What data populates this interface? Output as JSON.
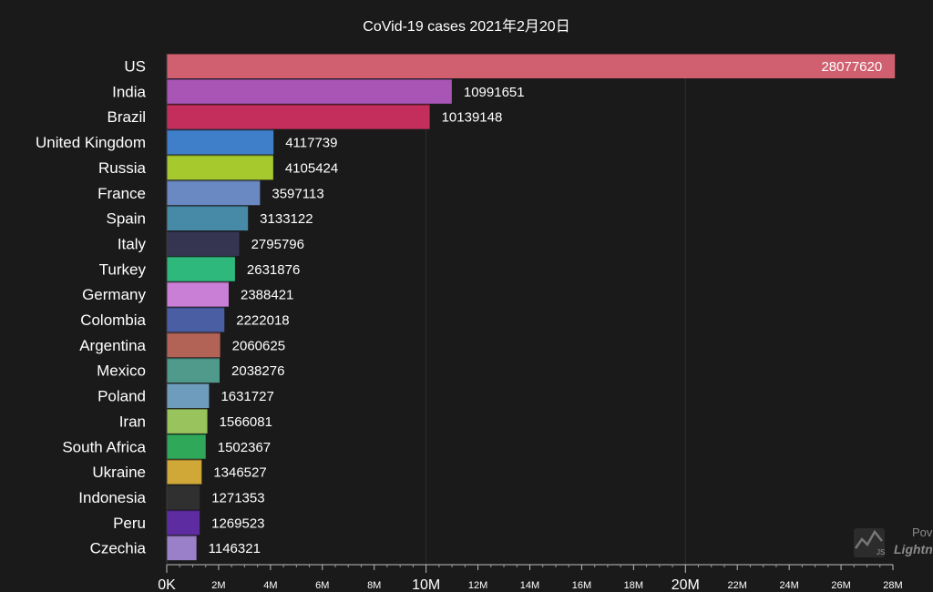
{
  "chart_data": {
    "type": "bar",
    "orientation": "horizontal",
    "title": "CoVid-19 cases 2021年2月20日",
    "categories": [
      "US",
      "India",
      "Brazil",
      "United Kingdom",
      "Russia",
      "France",
      "Spain",
      "Italy",
      "Turkey",
      "Germany",
      "Colombia",
      "Argentina",
      "Mexico",
      "Poland",
      "Iran",
      "South Africa",
      "Ukraine",
      "Indonesia",
      "Peru",
      "Czechia"
    ],
    "values": [
      28077620,
      10991651,
      10139148,
      4117739,
      4105424,
      3597113,
      3133122,
      2795796,
      2631876,
      2388421,
      2222018,
      2060625,
      2038276,
      1631727,
      1566081,
      1502367,
      1346527,
      1271353,
      1269523,
      1146321
    ],
    "value_labels": [
      "28077620",
      "10991651",
      "10139148",
      "4117739",
      "4105424",
      "3597113",
      "3133122",
      "2795796",
      "2631876",
      "2388421",
      "2222018",
      "2060625",
      "2038276",
      "1631727",
      "1566081",
      "1502367",
      "1346527",
      "1271353",
      "1269523",
      "1146321"
    ],
    "colors": [
      "#d06070",
      "#a855b5",
      "#c42e5c",
      "#3f7ec9",
      "#a6c92e",
      "#6a88c2",
      "#478aa8",
      "#353552",
      "#2eb87c",
      "#c97fd6",
      "#4a5fa3",
      "#b36355",
      "#4f9a8a",
      "#6e9cbc",
      "#99c35c",
      "#2fa85a",
      "#d0a838",
      "#303030",
      "#5c2ca0",
      "#9a80c8"
    ],
    "xlim": [
      0,
      28000000
    ],
    "xticks": [
      {
        "value": 0,
        "label": "0K",
        "major": true
      },
      {
        "value": 2000000,
        "label": "2M",
        "major": false
      },
      {
        "value": 4000000,
        "label": "4M",
        "major": false
      },
      {
        "value": 6000000,
        "label": "6M",
        "major": false
      },
      {
        "value": 8000000,
        "label": "8M",
        "major": false
      },
      {
        "value": 10000000,
        "label": "10M",
        "major": true
      },
      {
        "value": 12000000,
        "label": "12M",
        "major": false
      },
      {
        "value": 14000000,
        "label": "14M",
        "major": false
      },
      {
        "value": 16000000,
        "label": "16M",
        "major": false
      },
      {
        "value": 18000000,
        "label": "18M",
        "major": false
      },
      {
        "value": 20000000,
        "label": "20M",
        "major": true
      },
      {
        "value": 22000000,
        "label": "22M",
        "major": false
      },
      {
        "value": 24000000,
        "label": "24M",
        "major": false
      },
      {
        "value": 26000000,
        "label": "26M",
        "major": false
      },
      {
        "value": 28000000,
        "label": "28M",
        "major": false
      }
    ],
    "grid": true,
    "legend": "none"
  },
  "watermark": {
    "icon": "lightningchart-logo-icon",
    "icon_text": "JS",
    "line1": "Pov",
    "line2": "Lightn"
  }
}
